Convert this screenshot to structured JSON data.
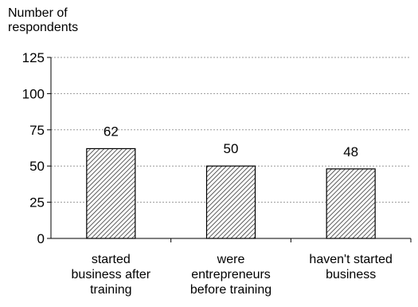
{
  "chart_data": {
    "type": "bar",
    "ylabel_lines": [
      "Number of",
      "respondents"
    ],
    "xlabel": "",
    "categories": [
      [
        "started",
        "business after",
        "training"
      ],
      [
        "were",
        "entrepreneurs",
        "before training"
      ],
      [
        "haven't started",
        "business"
      ]
    ],
    "values": [
      62,
      50,
      48
    ],
    "data_labels": [
      "62",
      "50",
      "48"
    ],
    "ylim": [
      0,
      125
    ],
    "yticks": [
      0,
      25,
      50,
      75,
      100,
      125
    ],
    "grid": true,
    "bar_fill": "hatched",
    "colors": {
      "bar_stroke": "#000000",
      "hatch": "#333333",
      "grid": "#9a9a9a",
      "axis": "#000000"
    }
  }
}
